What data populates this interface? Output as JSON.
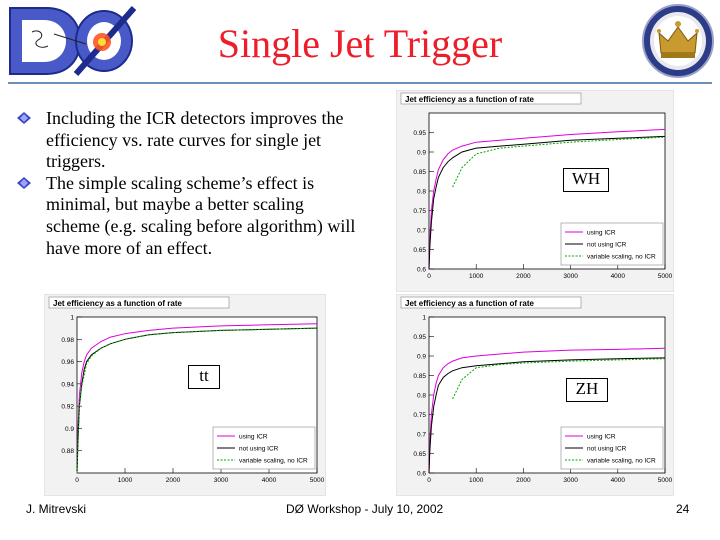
{
  "slide": {
    "title": "Single Jet Trigger",
    "bullets": [
      "Including the ICR detectors improves the efficiency vs. rate curves for single jet triggers.",
      "The simple scaling scheme’s effect is minimal, but maybe a better scaling scheme (e.g. scaling before algorithm) will have more of an effect."
    ],
    "footer": {
      "author": "J. Mitrevski",
      "event": "DØ Workshop - July 10, 2002",
      "page": "24"
    },
    "logo_text": "DØ"
  },
  "colors": {
    "title": "#ee1d2a",
    "rule": "#6a8fbf",
    "using_icr": "#dd00dd",
    "not_using_icr": "#000000",
    "variable_scaling": "#00aa00"
  },
  "chart_data": [
    {
      "id": "WH",
      "type": "line",
      "title": "Jet efficiency as a function of rate",
      "annotation": "WH",
      "xlim": [
        0,
        5000
      ],
      "ylim": [
        0.6,
        1.0
      ],
      "xticks": [
        0,
        1000,
        2000,
        3000,
        4000,
        5000
      ],
      "yticks": [
        0.6,
        0.65,
        0.7,
        0.75,
        0.8,
        0.85,
        0.9,
        0.95
      ],
      "legend_position": "bottom-right",
      "series": [
        {
          "name": "using ICR",
          "color": "#dd00dd",
          "x": [
            0,
            20,
            50,
            100,
            150,
            200,
            300,
            400,
            500,
            700,
            1000,
            1500,
            2000,
            3000,
            4000,
            5000
          ],
          "y": [
            0.6,
            0.68,
            0.75,
            0.8,
            0.83,
            0.855,
            0.88,
            0.895,
            0.905,
            0.915,
            0.925,
            0.93,
            0.935,
            0.945,
            0.952,
            0.958
          ]
        },
        {
          "name": "not using ICR",
          "color": "#000000",
          "x": [
            0,
            20,
            50,
            100,
            150,
            200,
            300,
            400,
            500,
            700,
            1000,
            1500,
            2000,
            3000,
            4000,
            5000
          ],
          "y": [
            0.6,
            0.66,
            0.72,
            0.78,
            0.81,
            0.835,
            0.86,
            0.875,
            0.885,
            0.9,
            0.91,
            0.915,
            0.92,
            0.93,
            0.935,
            0.94
          ]
        },
        {
          "name": "variable scaling, no ICR",
          "color": "#00aa00",
          "x": [
            500,
            700,
            1000,
            1500,
            2000,
            3000,
            4000,
            5000
          ],
          "y": [
            0.81,
            0.86,
            0.895,
            0.91,
            0.915,
            0.925,
            0.932,
            0.938
          ]
        }
      ]
    },
    {
      "id": "tt",
      "type": "line",
      "title": "Jet efficiency as a function of rate",
      "annotation": "tt",
      "xlim": [
        0,
        5000
      ],
      "ylim": [
        0.86,
        1.0
      ],
      "xticks": [
        0,
        1000,
        2000,
        3000,
        4000,
        5000
      ],
      "yticks": [
        0.88,
        0.9,
        0.92,
        0.94,
        0.96,
        0.98,
        1
      ],
      "legend_position": "bottom-right",
      "series": [
        {
          "name": "using ICR",
          "color": "#dd00dd",
          "x": [
            0,
            20,
            50,
            100,
            150,
            200,
            300,
            500,
            700,
            1000,
            1500,
            2000,
            3000,
            4000,
            5000
          ],
          "y": [
            0.86,
            0.9,
            0.93,
            0.95,
            0.96,
            0.966,
            0.972,
            0.978,
            0.982,
            0.985,
            0.988,
            0.99,
            0.992,
            0.993,
            0.994
          ]
        },
        {
          "name": "not using ICR",
          "color": "#000000",
          "x": [
            0,
            20,
            50,
            100,
            150,
            200,
            300,
            500,
            700,
            1000,
            1500,
            2000,
            3000,
            4000,
            5000
          ],
          "y": [
            0.86,
            0.89,
            0.92,
            0.94,
            0.953,
            0.96,
            0.966,
            0.972,
            0.976,
            0.98,
            0.984,
            0.986,
            0.988,
            0.989,
            0.99
          ]
        },
        {
          "name": "variable scaling, no ICR",
          "color": "#00aa00",
          "x": [
            0,
            50,
            100,
            200,
            300,
            500,
            700,
            1000,
            1500,
            2000,
            3000,
            4000,
            5000
          ],
          "y": [
            0.86,
            0.92,
            0.938,
            0.958,
            0.965,
            0.972,
            0.976,
            0.98,
            0.984,
            0.986,
            0.988,
            0.989,
            0.99
          ]
        }
      ]
    },
    {
      "id": "ZH",
      "type": "line",
      "title": "Jet efficiency as a function of rate",
      "annotation": "ZH",
      "xlim": [
        0,
        5000
      ],
      "ylim": [
        0.6,
        1.0
      ],
      "xticks": [
        0,
        1000,
        2000,
        3000,
        4000,
        5000
      ],
      "yticks": [
        0.6,
        0.65,
        0.7,
        0.75,
        0.8,
        0.85,
        0.9,
        0.95,
        1
      ],
      "legend_position": "bottom-right",
      "series": [
        {
          "name": "using ICR",
          "color": "#dd00dd",
          "x": [
            0,
            20,
            50,
            100,
            150,
            200,
            300,
            400,
            500,
            700,
            1000,
            1500,
            2000,
            3000,
            4000,
            5000
          ],
          "y": [
            0.6,
            0.68,
            0.75,
            0.8,
            0.83,
            0.85,
            0.87,
            0.88,
            0.887,
            0.895,
            0.9,
            0.905,
            0.91,
            0.915,
            0.917,
            0.92
          ]
        },
        {
          "name": "not using ICR",
          "color": "#000000",
          "x": [
            0,
            20,
            50,
            100,
            150,
            200,
            300,
            400,
            500,
            700,
            1000,
            1500,
            2000,
            3000,
            4000,
            5000
          ],
          "y": [
            0.6,
            0.66,
            0.72,
            0.77,
            0.8,
            0.825,
            0.845,
            0.855,
            0.862,
            0.87,
            0.875,
            0.88,
            0.885,
            0.89,
            0.893,
            0.895
          ]
        },
        {
          "name": "variable scaling, no ICR",
          "color": "#00aa00",
          "x": [
            500,
            700,
            1000,
            1500,
            2000,
            3000,
            4000,
            5000
          ],
          "y": [
            0.79,
            0.84,
            0.87,
            0.878,
            0.882,
            0.887,
            0.89,
            0.893
          ]
        }
      ]
    }
  ]
}
